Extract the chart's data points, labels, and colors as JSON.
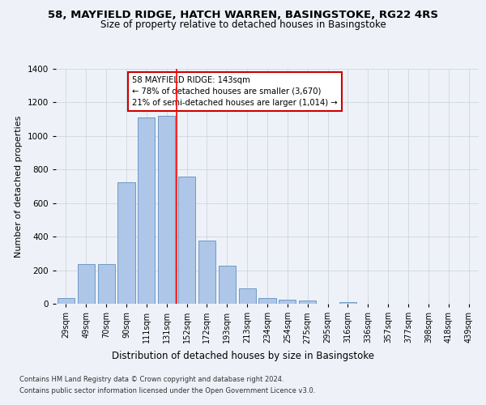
{
  "title": "58, MAYFIELD RIDGE, HATCH WARREN, BASINGSTOKE, RG22 4RS",
  "subtitle": "Size of property relative to detached houses in Basingstoke",
  "xlabel": "Distribution of detached houses by size in Basingstoke",
  "ylabel": "Number of detached properties",
  "categories": [
    "29sqm",
    "49sqm",
    "70sqm",
    "90sqm",
    "111sqm",
    "131sqm",
    "152sqm",
    "172sqm",
    "193sqm",
    "213sqm",
    "234sqm",
    "254sqm",
    "275sqm",
    "295sqm",
    "316sqm",
    "336sqm",
    "357sqm",
    "377sqm",
    "398sqm",
    "418sqm",
    "439sqm"
  ],
  "bar_values": [
    32,
    235,
    235,
    725,
    1110,
    1120,
    760,
    375,
    225,
    90,
    32,
    25,
    18,
    0,
    12,
    0,
    0,
    0,
    0,
    0,
    0
  ],
  "bar_color": "#aec6e8",
  "bar_edge_color": "#6090c0",
  "annotation_text_line1": "58 MAYFIELD RIDGE: 143sqm",
  "annotation_text_line2": "← 78% of detached houses are smaller (3,670)",
  "annotation_text_line3": "21% of semi-detached houses are larger (1,014) →",
  "annotation_box_color": "#ffffff",
  "annotation_box_edge_color": "#cc0000",
  "red_line_x": 5.5,
  "ylim": [
    0,
    1400
  ],
  "yticks": [
    0,
    200,
    400,
    600,
    800,
    1000,
    1200,
    1400
  ],
  "bg_color": "#eef2f8",
  "axes_bg_color": "#eef2f8",
  "footer_line1": "Contains HM Land Registry data © Crown copyright and database right 2024.",
  "footer_line2": "Contains public sector information licensed under the Open Government Licence v3.0.",
  "title_fontsize": 9.5,
  "subtitle_fontsize": 8.5,
  "xlabel_fontsize": 8.5,
  "ylabel_fontsize": 8
}
